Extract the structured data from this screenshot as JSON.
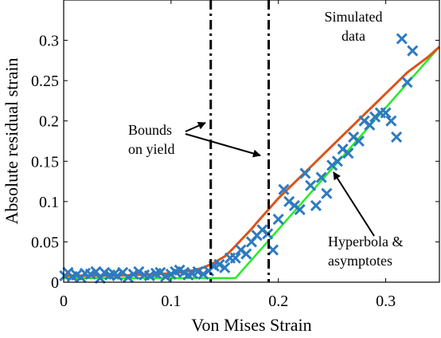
{
  "chart_data": {
    "type": "scatter",
    "xlabel": "Von Mises Strain",
    "ylabel": "Absolute residual strain",
    "xlim": [
      0,
      0.35
    ],
    "ylim": [
      0,
      0.35
    ],
    "xticks": [
      0,
      0.1,
      0.2,
      0.3
    ],
    "xtick_labels": [
      "0",
      "0.1",
      "0.2",
      "0.3"
    ],
    "yticks": [
      0,
      0.05,
      0.1,
      0.15,
      0.2,
      0.25,
      0.3
    ],
    "ytick_labels": [
      "0",
      "0.05",
      "0.1",
      "0.15",
      "0.2",
      "0.25",
      "0.3"
    ],
    "grid": false,
    "colors": {
      "scatter": "#2e7bbf",
      "hyperbola": "#d9541a",
      "asymptotes": "#22ee22",
      "bounds": "#000000"
    },
    "series": [
      {
        "kind": "scatter",
        "marker": "x",
        "x": [
          0.001,
          0.004,
          0.008,
          0.012,
          0.016,
          0.02,
          0.025,
          0.03,
          0.034,
          0.038,
          0.043,
          0.047,
          0.05,
          0.055,
          0.06,
          0.065,
          0.07,
          0.075,
          0.08,
          0.086,
          0.09,
          0.095,
          0.1,
          0.104,
          0.108,
          0.112,
          0.116,
          0.12,
          0.125,
          0.13,
          0.135,
          0.14,
          0.145,
          0.15,
          0.155,
          0.16,
          0.165,
          0.17,
          0.175,
          0.18,
          0.185,
          0.19,
          0.195,
          0.2,
          0.205,
          0.21,
          0.215,
          0.22,
          0.225,
          0.23,
          0.235,
          0.24,
          0.245,
          0.25,
          0.255,
          0.26,
          0.265,
          0.27,
          0.275,
          0.28,
          0.285,
          0.29,
          0.295,
          0.3,
          0.305,
          0.31,
          0.315,
          0.32,
          0.325
        ],
        "y": [
          0.008,
          0.012,
          0.007,
          0.009,
          0.006,
          0.011,
          0.01,
          0.013,
          0.005,
          0.012,
          0.009,
          0.01,
          0.008,
          0.012,
          0.006,
          0.01,
          0.013,
          0.009,
          0.008,
          0.011,
          0.012,
          0.007,
          0.01,
          0.013,
          0.015,
          0.012,
          0.009,
          0.011,
          0.013,
          0.01,
          0.014,
          0.02,
          0.022,
          0.018,
          0.03,
          0.03,
          0.04,
          0.035,
          0.05,
          0.058,
          0.065,
          0.06,
          0.04,
          0.078,
          0.115,
          0.1,
          0.095,
          0.09,
          0.135,
          0.12,
          0.095,
          0.13,
          0.11,
          0.145,
          0.15,
          0.165,
          0.16,
          0.18,
          0.175,
          0.2,
          0.195,
          0.205,
          0.21,
          0.21,
          0.2,
          0.18,
          0.302,
          0.248,
          0.287
        ]
      },
      {
        "kind": "line",
        "role": "hyperbola",
        "x": [
          0,
          0.02,
          0.04,
          0.06,
          0.08,
          0.1,
          0.11,
          0.12,
          0.13,
          0.14,
          0.15,
          0.155,
          0.16,
          0.165,
          0.17,
          0.175,
          0.18,
          0.19,
          0.2,
          0.21,
          0.22,
          0.23,
          0.24,
          0.25,
          0.26,
          0.27,
          0.28,
          0.29,
          0.3,
          0.31,
          0.32,
          0.33,
          0.34,
          0.35
        ],
        "y": [
          0.008,
          0.0081,
          0.0083,
          0.0087,
          0.0095,
          0.011,
          0.0125,
          0.0145,
          0.018,
          0.024,
          0.032,
          0.038,
          0.045,
          0.052,
          0.059,
          0.066,
          0.074,
          0.089,
          0.104,
          0.117,
          0.13,
          0.143,
          0.156,
          0.169,
          0.182,
          0.195,
          0.208,
          0.221,
          0.234,
          0.247,
          0.26,
          0.27,
          0.28,
          0.292
        ]
      },
      {
        "kind": "line",
        "role": "asymptotes",
        "x": [
          0,
          0.16,
          0.35
        ],
        "y": [
          0.005,
          0.005,
          0.292
        ]
      }
    ],
    "bounds": [
      0.137,
      0.191
    ],
    "annotations": [
      {
        "id": "simulated-data",
        "lines": [
          "Simulated",
          "data"
        ]
      },
      {
        "id": "bounds-on-yield",
        "lines": [
          "Bounds",
          "on yield"
        ]
      },
      {
        "id": "hyperbola-asymptotes",
        "lines": [
          "Hyperbola &",
          "asymptotes"
        ]
      }
    ]
  }
}
